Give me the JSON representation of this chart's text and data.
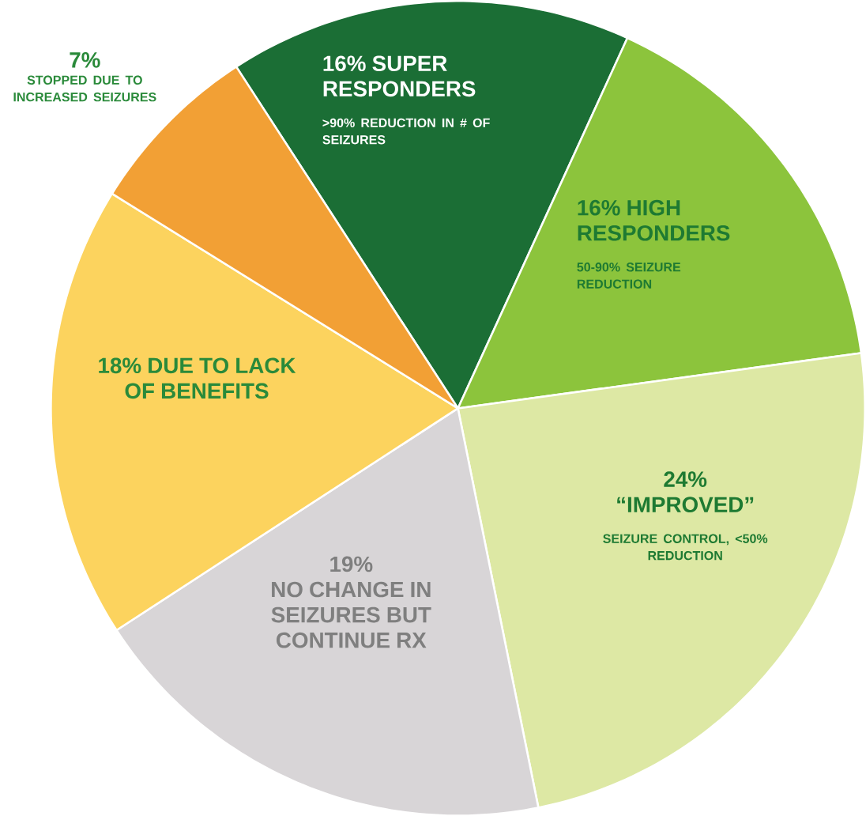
{
  "chart_data": {
    "type": "pie",
    "categories": [
      "SUPER RESPONDERS",
      "HIGH RESPONDERS",
      "“IMPROVED”",
      "NO CHANGE IN SEIZURES BUT CONTINUE RX",
      "DUE TO LACK OF BENEFITS",
      "STOPPED DUE TO INCREASED SEIZURES"
    ],
    "values": [
      16,
      16,
      24,
      19,
      18,
      7
    ],
    "value_labels": [
      "16%",
      "16%",
      "24%",
      "19%",
      "18%",
      "7%"
    ],
    "colors": [
      "#1b6e35",
      "#8cc43c",
      "#dde8a4",
      "#d8d5d7",
      "#fcd35e",
      "#f2a035"
    ],
    "annotations": [
      ">90% REDUCTION IN # OF SEIZURES",
      "50-90%  SEIZURE REDUCTION",
      "SEIZURE CONTROL, <50% REDUCTION"
    ]
  }
}
